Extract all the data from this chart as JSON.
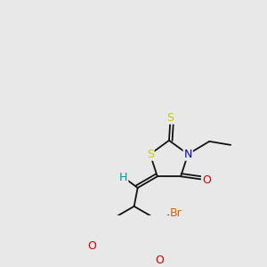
{
  "background_color": "#e8e8e8",
  "figsize": [
    3.0,
    3.0
  ],
  "dpi": 100,
  "bond_lw": 1.3,
  "bond_color": "#111111",
  "label_fontsize": 8.5,
  "colors": {
    "S": "#cccc00",
    "N": "#0000cc",
    "O": "#cc0000",
    "Br": "#cc6600",
    "H": "#009999",
    "C": "#111111"
  }
}
